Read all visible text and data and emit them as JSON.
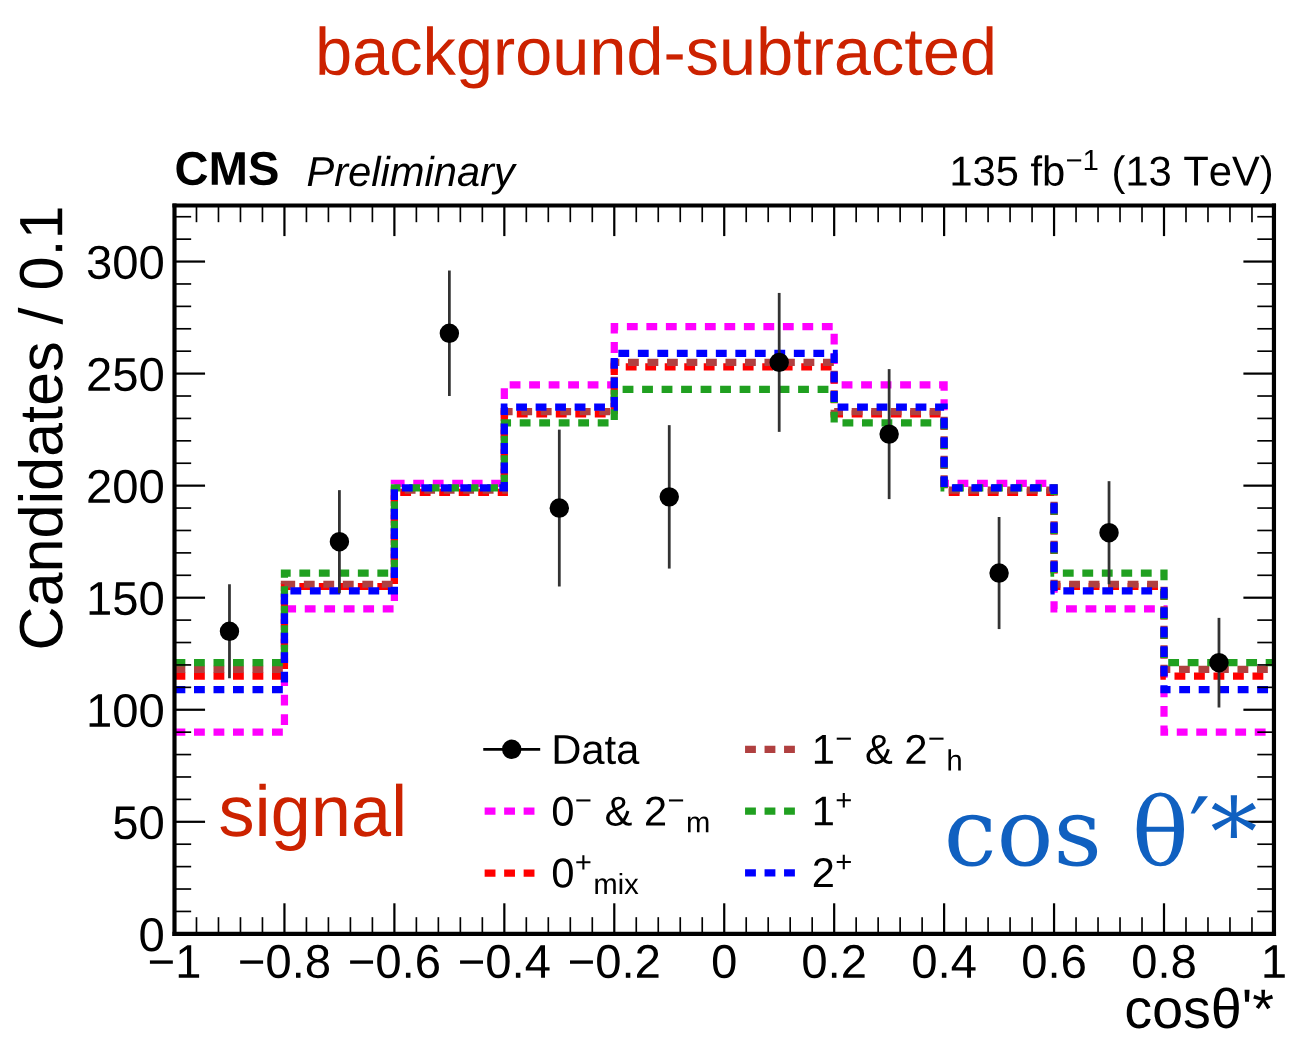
{
  "chart_data": {
    "type": "histogram",
    "title": "background-subtracted",
    "xlabel": "cosθ'*",
    "ylabel": "Candidates / 0.1",
    "bins": [
      -1,
      -0.8,
      -0.6,
      -0.4,
      -0.2,
      0,
      0.2,
      0.4,
      0.6,
      0.8,
      1
    ],
    "series": [
      {
        "name": "Data",
        "type": "scatter",
        "color": "#000000",
        "marker": "circle",
        "x": [
          -0.9,
          -0.7,
          -0.5,
          -0.3,
          -0.1,
          0.1,
          0.3,
          0.5,
          0.7,
          0.9
        ],
        "values": [
          135,
          175,
          268,
          190,
          195,
          255,
          223,
          161,
          179,
          121
        ],
        "errors": [
          21,
          23,
          28,
          35,
          32,
          31,
          29,
          25,
          23,
          20
        ]
      },
      {
        "name": "0$^{−}$ & 2$^{−}$$_{m}$",
        "color": "#ff00ff",
        "line_style": "dotted",
        "values": [
          90,
          145,
          201,
          245,
          271,
          271,
          245,
          201,
          145,
          90
        ]
      },
      {
        "name": "0$^{+}$$_{mix}$",
        "color": "#ff0000",
        "line_style": "dotted",
        "values": [
          115,
          155,
          197,
          232,
          253,
          253,
          232,
          197,
          155,
          115
        ]
      },
      {
        "name": "1$^{−}$ & 2$^{−}$$_{h}$",
        "color": "#b04040",
        "line_style": "dotted",
        "values": [
          118,
          156,
          198,
          233,
          255,
          255,
          233,
          198,
          156,
          118
        ]
      },
      {
        "name": "1$^{+}$",
        "color": "#20a020",
        "line_style": "dotted",
        "values": [
          121,
          161,
          199,
          228,
          243,
          243,
          228,
          199,
          161,
          121
        ]
      },
      {
        "name": "2$^{+}$",
        "color": "#0000ff",
        "line_style": "dotted",
        "values": [
          109,
          153,
          199,
          235,
          259,
          259,
          235,
          199,
          153,
          109
        ]
      }
    ],
    "xlim": [
      -1,
      1
    ],
    "xticks": [
      {
        "value": -1,
        "label": "−1"
      },
      {
        "value": -0.8,
        "label": "−0.8"
      },
      {
        "value": -0.6,
        "label": "−0.6"
      },
      {
        "value": -0.4,
        "label": "−0.4"
      },
      {
        "value": -0.2,
        "label": "−0.2"
      },
      0,
      0.2,
      0.4,
      0.6,
      0.8,
      1
    ],
    "ylim": [
      0,
      325
    ],
    "yticks": [
      0,
      50,
      100,
      150,
      200,
      250,
      300
    ],
    "grid": false,
    "legend": "bottom",
    "annotations": [
      "CMS",
      "Preliminary",
      "135 fb$^{−1}$ (13 TeV)",
      "signal",
      "cos θ′*"
    ]
  }
}
